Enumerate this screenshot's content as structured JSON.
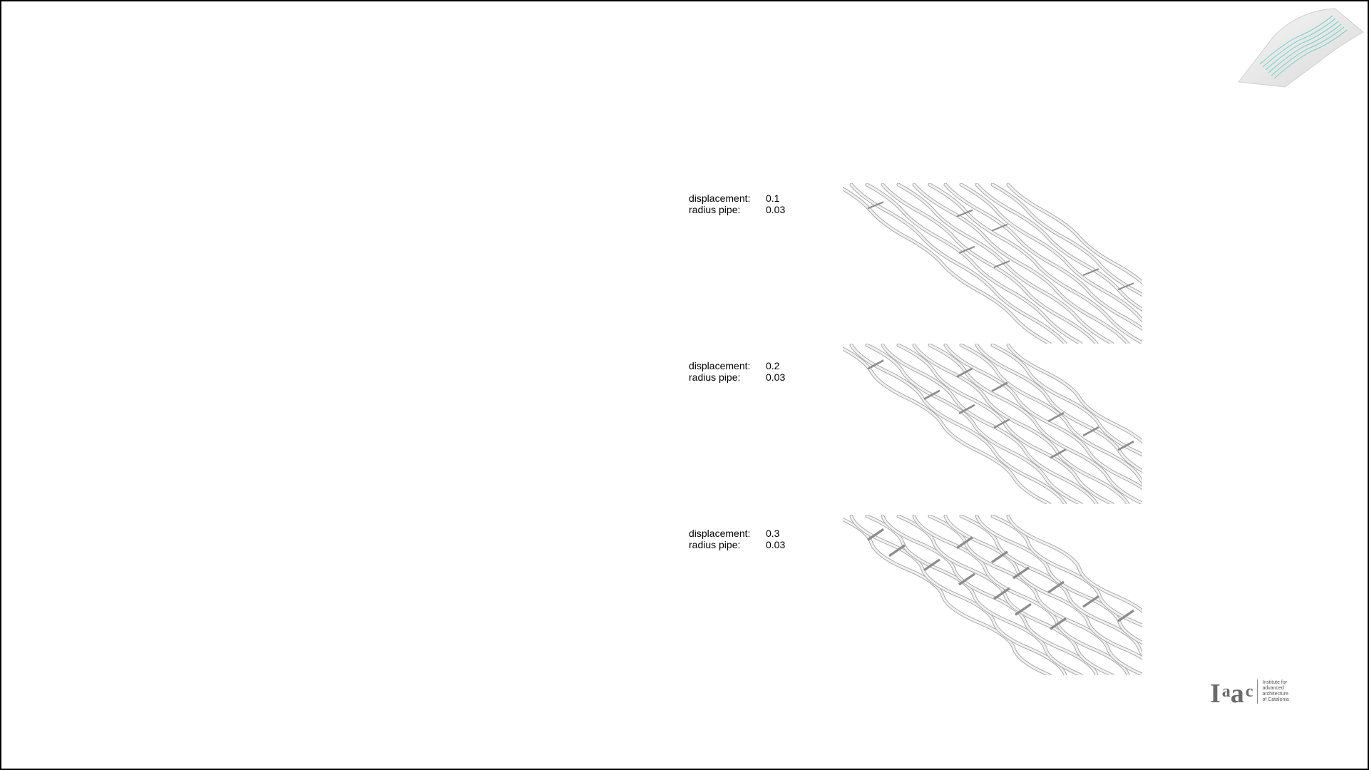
{
  "panels": [
    {
      "displacement_label": "displacement:",
      "displacement_value": "0.1",
      "radius_label": "radius pipe:",
      "radius_value": "0.03"
    },
    {
      "displacement_label": "displacement:",
      "displacement_value": "0.2",
      "radius_label": "radius pipe:",
      "radius_value": "0.03"
    },
    {
      "displacement_label": "displacement:",
      "displacement_value": "0.3",
      "radius_label": "radius pipe:",
      "radius_value": "0.03"
    }
  ],
  "logo": {
    "letters": [
      "I",
      "a",
      "a",
      "c"
    ],
    "lines": [
      "Institute for",
      "advanced",
      "architecture",
      "of Catalonia"
    ]
  }
}
